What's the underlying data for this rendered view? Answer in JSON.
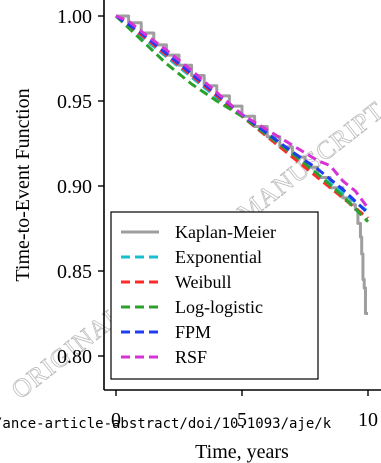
{
  "chart_data": {
    "type": "line",
    "xlabel": "Time, years",
    "ylabel": "Time-to-Event Function",
    "xlim": [
      0,
      10
    ],
    "ylim": [
      0.78,
      1.0
    ],
    "xticks": [
      "0",
      "5",
      "10"
    ],
    "yticks": [
      "0.80",
      "0.85",
      "0.90",
      "0.95",
      "1.00"
    ],
    "legend_position": "lower-left",
    "grid": false,
    "series": [
      {
        "name": "Kaplan-Meier",
        "color": "#9e9e9e",
        "style": "solid-step",
        "x": [
          0,
          0.5,
          1,
          1.5,
          2,
          2.5,
          3,
          3.5,
          4,
          4.5,
          5,
          5.5,
          6,
          6.5,
          7,
          7.5,
          8,
          8.5,
          9,
          9.3,
          9.5,
          9.6,
          9.7,
          9.75,
          9.8,
          9.85,
          9.9,
          10.0
        ],
        "y": [
          1.0,
          0.996,
          0.99,
          0.983,
          0.977,
          0.971,
          0.965,
          0.959,
          0.953,
          0.947,
          0.941,
          0.935,
          0.929,
          0.923,
          0.917,
          0.911,
          0.905,
          0.899,
          0.893,
          0.889,
          0.886,
          0.878,
          0.87,
          0.86,
          0.845,
          0.84,
          0.825,
          0.825
        ]
      },
      {
        "name": "Exponential",
        "color": "#17becf",
        "style": "dashed",
        "x": [
          0,
          1,
          2,
          3,
          4,
          5,
          6,
          7,
          8,
          9,
          10
        ],
        "y": [
          1.0,
          0.988,
          0.976,
          0.964,
          0.952,
          0.941,
          0.929,
          0.918,
          0.907,
          0.896,
          0.885
        ]
      },
      {
        "name": "Weibull",
        "color": "#ff2a2a",
        "style": "dashed",
        "x": [
          0,
          1,
          2,
          3,
          4,
          5,
          6,
          7,
          8,
          9,
          10
        ],
        "y": [
          1.0,
          0.989,
          0.977,
          0.965,
          0.953,
          0.941,
          0.929,
          0.917,
          0.905,
          0.893,
          0.881
        ]
      },
      {
        "name": "Log-logistic",
        "color": "#2ca02c",
        "style": "dashed",
        "x": [
          0,
          1,
          2,
          3,
          4,
          5,
          6,
          7,
          8,
          9,
          10
        ],
        "y": [
          1.0,
          0.986,
          0.972,
          0.96,
          0.95,
          0.941,
          0.93,
          0.919,
          0.907,
          0.894,
          0.879
        ]
      },
      {
        "name": "FPM",
        "color": "#1f3cf0",
        "style": "dashed",
        "x": [
          0,
          1,
          2,
          3,
          4,
          5,
          6,
          7,
          8,
          9,
          10
        ],
        "y": [
          1.0,
          0.99,
          0.978,
          0.966,
          0.954,
          0.942,
          0.931,
          0.92,
          0.91,
          0.898,
          0.884
        ]
      },
      {
        "name": "RSF",
        "color": "#d633d6",
        "style": "dashed",
        "x": [
          0,
          0.5,
          1,
          2,
          3,
          4,
          5,
          6,
          7,
          8,
          8.5,
          9,
          9.5,
          10
        ],
        "y": [
          1.0,
          0.997,
          0.991,
          0.98,
          0.968,
          0.955,
          0.942,
          0.933,
          0.924,
          0.915,
          0.912,
          0.903,
          0.897,
          0.887
        ]
      }
    ]
  },
  "watermark_text": "ORIGINAL UNEDITED MANUSCRIPT",
  "url_text": "/ance-article-abstract/doi/10.1093/aje/k"
}
